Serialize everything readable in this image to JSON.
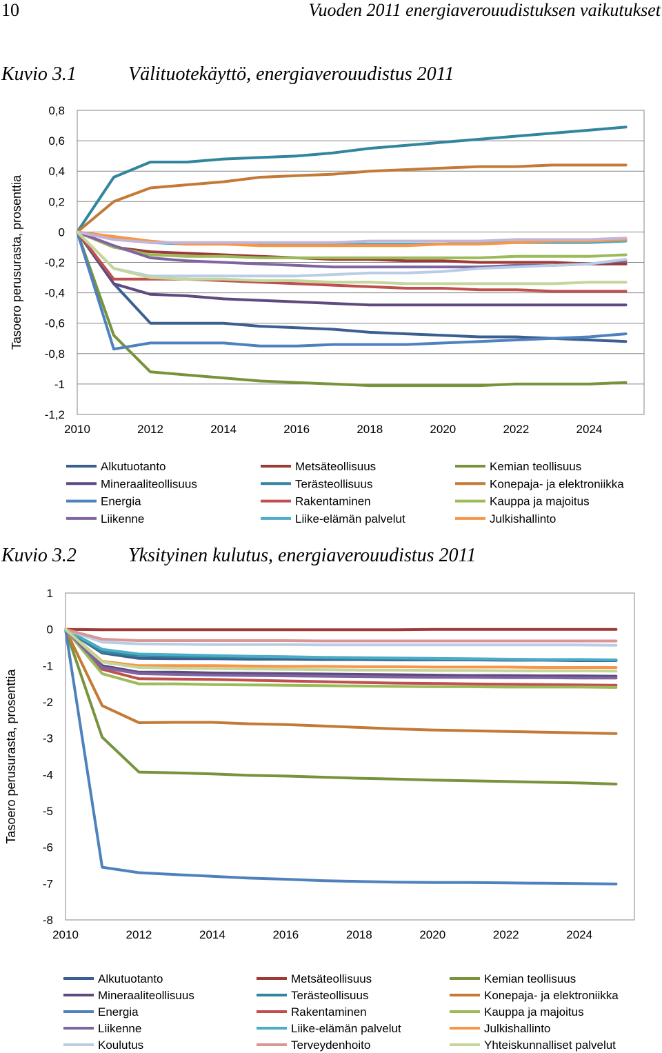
{
  "header": {
    "page_number": "10",
    "running_title": "Vuoden 2011 energiaverouudistuksen vaikutukset"
  },
  "figures": [
    {
      "number": "Kuvio 3.1",
      "title": "Välituotekäyttö, energiaverouudistus 2011"
    },
    {
      "number": "Kuvio 3.2",
      "title": "Yksityinen kulutus, energiaverouudistus 2011"
    }
  ],
  "chart_data": [
    {
      "type": "line",
      "title": "",
      "xlabel": "",
      "ylabel": "Tasoero perusurasta, prosenttia",
      "x": [
        2010,
        2011,
        2012,
        2013,
        2014,
        2015,
        2016,
        2017,
        2018,
        2019,
        2020,
        2021,
        2022,
        2023,
        2024,
        2025
      ],
      "xticks": [
        2010,
        2012,
        2014,
        2016,
        2018,
        2020,
        2022,
        2024
      ],
      "xtick_labels": [
        "2010",
        "2012",
        "2014",
        "2016",
        "2018",
        "2020",
        "2022",
        "2024"
      ],
      "ylim": [
        -1.2,
        0.8
      ],
      "yticks": [
        -1.2,
        -1,
        -0.8,
        -0.6,
        -0.4,
        -0.2,
        0,
        0.2,
        0.4,
        0.6,
        0.8
      ],
      "ytick_labels": [
        "-1,2",
        "-1",
        "-0,8",
        "-0,6",
        "-0,4",
        "-0,2",
        "0",
        "0,2",
        "0,4",
        "0,6",
        "0,8"
      ],
      "grid": true,
      "legend": "bottom",
      "series": [
        {
          "name": "Alkutuotanto",
          "color": "#3b5f91",
          "values": [
            0,
            -0.34,
            -0.6,
            -0.6,
            -0.6,
            -0.62,
            -0.63,
            -0.64,
            -0.66,
            -0.67,
            -0.68,
            -0.69,
            -0.69,
            -0.7,
            -0.71,
            -0.72
          ]
        },
        {
          "name": "Metsäteollisuus",
          "color": "#9c3a36",
          "values": [
            0,
            -0.1,
            -0.13,
            -0.14,
            -0.15,
            -0.16,
            -0.17,
            -0.18,
            -0.18,
            -0.19,
            -0.19,
            -0.2,
            -0.2,
            -0.2,
            -0.21,
            -0.21
          ]
        },
        {
          "name": "Kemian teollisuus",
          "color": "#77933c",
          "values": [
            0,
            -0.68,
            -0.92,
            -0.94,
            -0.96,
            -0.98,
            -0.99,
            -1.0,
            -1.01,
            -1.01,
            -1.01,
            -1.01,
            -1.0,
            -1.0,
            -1.0,
            -0.99
          ]
        },
        {
          "name": "Mineraaliteollisuus",
          "color": "#5f4a7f",
          "values": [
            0,
            -0.34,
            -0.41,
            -0.42,
            -0.44,
            -0.45,
            -0.46,
            -0.47,
            -0.48,
            -0.48,
            -0.48,
            -0.48,
            -0.48,
            -0.48,
            -0.48,
            -0.48
          ]
        },
        {
          "name": "Terästeollisuus",
          "color": "#31859c",
          "values": [
            0,
            0.36,
            0.46,
            0.46,
            0.48,
            0.49,
            0.5,
            0.52,
            0.55,
            0.57,
            0.59,
            0.61,
            0.63,
            0.65,
            0.67,
            0.69
          ]
        },
        {
          "name": "Konepaja- ja elektroniikka",
          "color": "#c47a37",
          "values": [
            0,
            0.2,
            0.29,
            0.31,
            0.33,
            0.36,
            0.37,
            0.38,
            0.4,
            0.41,
            0.42,
            0.43,
            0.43,
            0.44,
            0.44,
            0.44
          ]
        },
        {
          "name": "Energia",
          "color": "#4f81bd",
          "values": [
            0,
            -0.77,
            -0.73,
            -0.73,
            -0.73,
            -0.75,
            -0.75,
            -0.74,
            -0.74,
            -0.74,
            -0.73,
            -0.72,
            -0.71,
            -0.7,
            -0.69,
            -0.67
          ]
        },
        {
          "name": "Rakentaminen",
          "color": "#c0504d",
          "values": [
            0,
            -0.31,
            -0.31,
            -0.31,
            -0.32,
            -0.33,
            -0.34,
            -0.35,
            -0.36,
            -0.37,
            -0.37,
            -0.38,
            -0.38,
            -0.39,
            -0.39,
            -0.39
          ]
        },
        {
          "name": "Kauppa ja majoitus",
          "color": "#9bbb59",
          "values": [
            0,
            -0.1,
            -0.15,
            -0.16,
            -0.16,
            -0.17,
            -0.17,
            -0.17,
            -0.17,
            -0.17,
            -0.17,
            -0.17,
            -0.16,
            -0.16,
            -0.16,
            -0.15
          ]
        },
        {
          "name": "Liikenne",
          "color": "#8064a2",
          "values": [
            0,
            -0.09,
            -0.17,
            -0.19,
            -0.2,
            -0.21,
            -0.22,
            -0.23,
            -0.23,
            -0.23,
            -0.23,
            -0.23,
            -0.22,
            -0.22,
            -0.21,
            -0.19
          ]
        },
        {
          "name": "Liike-elämän palvelut",
          "color": "#4bacc6",
          "values": [
            0,
            -0.04,
            -0.07,
            -0.08,
            -0.08,
            -0.08,
            -0.08,
            -0.08,
            -0.08,
            -0.08,
            -0.08,
            -0.07,
            -0.07,
            -0.07,
            -0.07,
            -0.06
          ]
        },
        {
          "name": "Julkishallinto",
          "color": "#f79646",
          "values": [
            0,
            -0.03,
            -0.06,
            -0.08,
            -0.08,
            -0.09,
            -0.09,
            -0.09,
            -0.09,
            -0.09,
            -0.08,
            -0.08,
            -0.07,
            -0.06,
            -0.06,
            -0.05
          ]
        },
        {
          "color": "#c4b5d6",
          "values": [
            0,
            -0.05,
            -0.07,
            -0.07,
            -0.07,
            -0.07,
            -0.07,
            -0.07,
            -0.06,
            -0.06,
            -0.06,
            -0.06,
            -0.05,
            -0.05,
            -0.05,
            -0.04
          ]
        },
        {
          "color": "#b9cde5",
          "values": [
            0,
            -0.24,
            -0.29,
            -0.29,
            -0.29,
            -0.29,
            -0.29,
            -0.28,
            -0.27,
            -0.27,
            -0.26,
            -0.24,
            -0.23,
            -0.22,
            -0.21,
            -0.18
          ]
        },
        {
          "color": "#c3d69b",
          "values": [
            0,
            -0.24,
            -0.3,
            -0.31,
            -0.31,
            -0.32,
            -0.32,
            -0.33,
            -0.33,
            -0.34,
            -0.34,
            -0.34,
            -0.34,
            -0.34,
            -0.33,
            -0.33
          ]
        }
      ]
    },
    {
      "type": "line",
      "title": "",
      "xlabel": "",
      "ylabel": "Tasoero perusurasta, prosenttia",
      "x": [
        2010,
        2011,
        2012,
        2013,
        2014,
        2015,
        2016,
        2017,
        2018,
        2019,
        2020,
        2021,
        2022,
        2023,
        2024,
        2025
      ],
      "xticks": [
        2010,
        2012,
        2014,
        2016,
        2018,
        2020,
        2022,
        2024
      ],
      "xtick_labels": [
        "2010",
        "2012",
        "2014",
        "2016",
        "2018",
        "2020",
        "2022",
        "2024"
      ],
      "ylim": [
        -8,
        1
      ],
      "yticks": [
        -8,
        -7,
        -6,
        -5,
        -4,
        -3,
        -2,
        -1,
        0,
        1
      ],
      "ytick_labels": [
        "-8",
        "-7",
        "-6",
        "-5",
        "-4",
        "-3",
        "-2",
        "-1",
        "0",
        "1"
      ],
      "grid": false,
      "legend": "bottom",
      "series": [
        {
          "name": "Alkutuotanto",
          "color": "#3b5f91",
          "values": [
            0,
            -0.65,
            -0.8,
            -0.81,
            -0.81,
            -0.82,
            -0.82,
            -0.83,
            -0.83,
            -0.84,
            -0.84,
            -0.84,
            -0.85,
            -0.85,
            -0.86,
            -0.86
          ]
        },
        {
          "name": "Metsäteollisuus",
          "color": "#9c3a36",
          "values": [
            0,
            -0.01,
            -0.01,
            -0.01,
            -0.01,
            -0.01,
            -0.01,
            -0.01,
            -0.01,
            -0.01,
            0,
            0,
            0,
            0,
            0,
            0
          ]
        },
        {
          "name": "Kemian teollisuus",
          "color": "#77933c",
          "values": [
            0,
            -2.97,
            -3.93,
            -3.95,
            -3.98,
            -4.02,
            -4.04,
            -4.07,
            -4.1,
            -4.12,
            -4.15,
            -4.17,
            -4.19,
            -4.21,
            -4.23,
            -4.26
          ]
        },
        {
          "name": "Mineraaliteollisuus",
          "color": "#5f4a7f",
          "values": [
            0,
            -1.0,
            -1.18,
            -1.18,
            -1.2,
            -1.21,
            -1.22,
            -1.23,
            -1.24,
            -1.25,
            -1.26,
            -1.27,
            -1.27,
            -1.28,
            -1.28,
            -1.29
          ]
        },
        {
          "name": "Terästeollisuus",
          "color": "#31859c",
          "values": [
            0,
            -0.62,
            -0.72,
            -0.74,
            -0.76,
            -0.77,
            -0.78,
            -0.79,
            -0.8,
            -0.81,
            -0.82,
            -0.82,
            -0.83,
            -0.84,
            -0.84,
            -0.85
          ]
        },
        {
          "name": "Konepaja- ja elektroniikka",
          "color": "#c47a37",
          "values": [
            0,
            -2.1,
            -2.57,
            -2.56,
            -2.56,
            -2.6,
            -2.62,
            -2.66,
            -2.7,
            -2.74,
            -2.77,
            -2.79,
            -2.81,
            -2.83,
            -2.85,
            -2.87
          ]
        },
        {
          "name": "Energia",
          "color": "#4f81bd",
          "values": [
            0,
            -6.55,
            -6.7,
            -6.75,
            -6.8,
            -6.85,
            -6.88,
            -6.92,
            -6.94,
            -6.96,
            -6.97,
            -6.97,
            -6.98,
            -6.99,
            -7.0,
            -7.01
          ]
        },
        {
          "name": "Rakentaminen",
          "color": "#c0504d",
          "values": [
            0,
            -1.1,
            -1.36,
            -1.37,
            -1.38,
            -1.4,
            -1.42,
            -1.44,
            -1.46,
            -1.48,
            -1.49,
            -1.5,
            -1.51,
            -1.52,
            -1.53,
            -1.54
          ]
        },
        {
          "name": "Kauppa ja majoitus",
          "color": "#9bbb59",
          "values": [
            0,
            -1.22,
            -1.5,
            -1.5,
            -1.52,
            -1.53,
            -1.54,
            -1.55,
            -1.56,
            -1.57,
            -1.58,
            -1.58,
            -1.59,
            -1.59,
            -1.59,
            -1.6
          ]
        },
        {
          "name": "Liikenne",
          "color": "#8064a2",
          "values": [
            0,
            -1.05,
            -1.22,
            -1.24,
            -1.26,
            -1.27,
            -1.28,
            -1.29,
            -1.3,
            -1.31,
            -1.32,
            -1.32,
            -1.33,
            -1.33,
            -1.34,
            -1.34
          ]
        },
        {
          "name": "Liike-elämän palvelut",
          "color": "#4bacc6",
          "values": [
            0,
            -0.55,
            -0.68,
            -0.7,
            -0.72,
            -0.74,
            -0.75,
            -0.77,
            -0.78,
            -0.79,
            -0.8,
            -0.81,
            -0.82,
            -0.83,
            -0.83,
            -0.84
          ]
        },
        {
          "name": "Julkishallinto",
          "color": "#f79646",
          "values": [
            0,
            -0.88,
            -1.0,
            -1.0,
            -1.0,
            -1.01,
            -1.02,
            -1.02,
            -1.03,
            -1.03,
            -1.04,
            -1.04,
            -1.04,
            -1.05,
            -1.05,
            -1.05
          ]
        },
        {
          "name": "Koulutus",
          "color": "#b9cde5",
          "values": [
            0,
            -0.35,
            -0.4,
            -0.41,
            -0.42,
            -0.42,
            -0.42,
            -0.43,
            -0.43,
            -0.43,
            -0.43,
            -0.43,
            -0.43,
            -0.43,
            -0.43,
            -0.44
          ]
        },
        {
          "name": "Terveydenhoito",
          "color": "#d99694",
          "values": [
            0,
            -0.27,
            -0.31,
            -0.31,
            -0.31,
            -0.31,
            -0.31,
            -0.32,
            -0.32,
            -0.32,
            -0.32,
            -0.32,
            -0.32,
            -0.32,
            -0.32,
            -0.32
          ]
        },
        {
          "name": "Yhteiskunnalliset palvelut",
          "color": "#c3d69b",
          "values": [
            0,
            -0.9,
            -1.05,
            -1.07,
            -1.08,
            -1.09,
            -1.1,
            -1.11,
            -1.12,
            -1.12,
            -1.13,
            -1.13,
            -1.14,
            -1.14,
            -1.14,
            -1.15
          ]
        }
      ]
    }
  ]
}
